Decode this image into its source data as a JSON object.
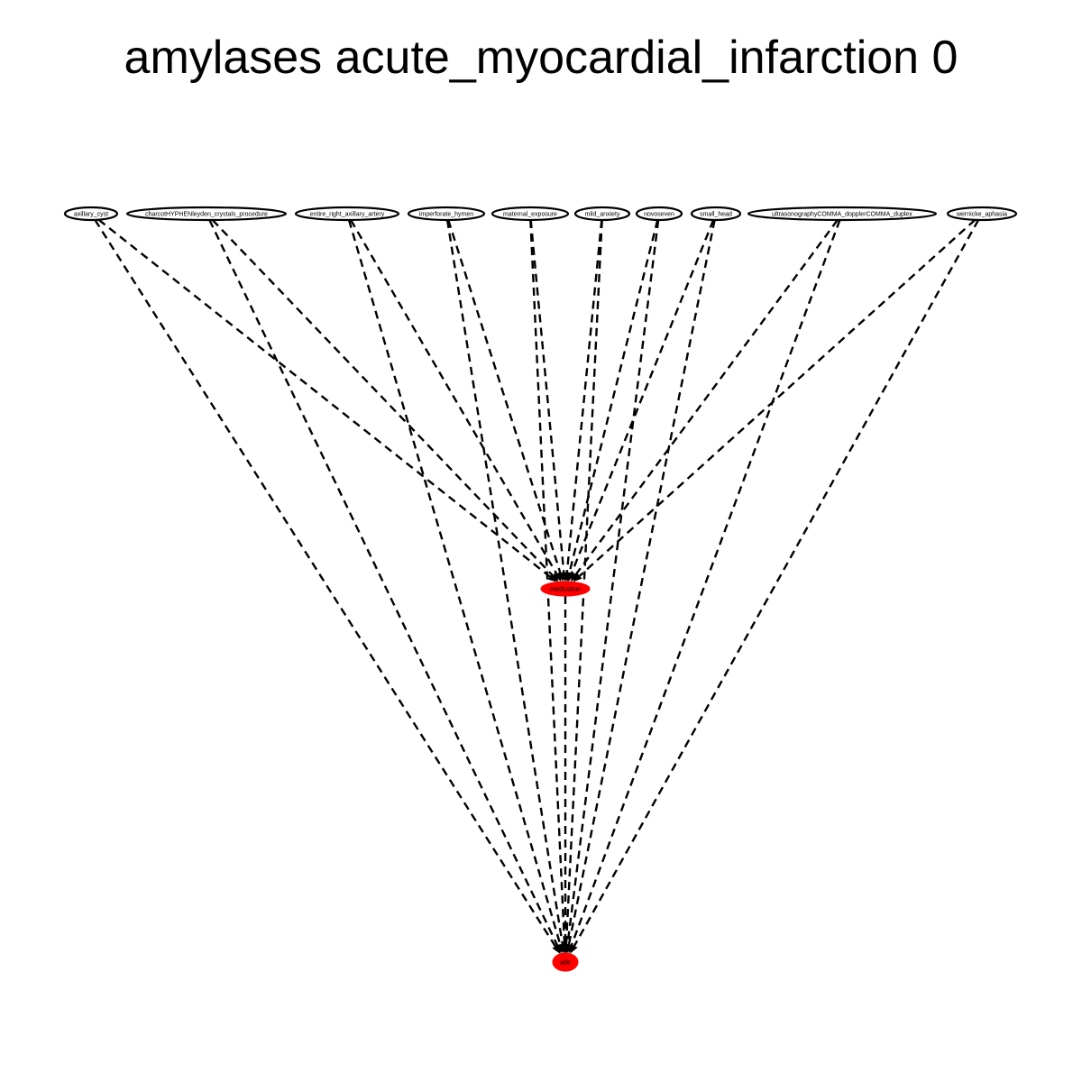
{
  "title": "amylases acute_myocardial_infarction 0",
  "colors": {
    "highlight_fill": "#ff0000",
    "node_stroke": "#000000",
    "edge": "#000000",
    "background": "#ffffff"
  },
  "nodes": {
    "n1": {
      "label": "axillary_cyst",
      "highlighted": false
    },
    "n2": {
      "label": "charcotHYPHENleyden_crystals_procedure",
      "highlighted": false
    },
    "n3": {
      "label": "entire_right_axillary_artery",
      "highlighted": false
    },
    "n4": {
      "label": "imperforate_hymen",
      "highlighted": false
    },
    "n5": {
      "label": "maternal_exposure",
      "highlighted": false
    },
    "n6": {
      "label": "mild_anxiety",
      "highlighted": false
    },
    "n7": {
      "label": "novoseven",
      "highlighted": false
    },
    "n8": {
      "label": "small_head",
      "highlighted": false
    },
    "n9": {
      "label": "ultrasonographyCOMMA_dopplerCOMMA_duplex",
      "highlighted": false
    },
    "n10": {
      "label": "wernicke_aphasia",
      "highlighted": false
    },
    "medication": {
      "label": "medication",
      "highlighted": true
    },
    "ade": {
      "label": "ade",
      "highlighted": true
    }
  },
  "edges": [
    {
      "from": "n1",
      "to": "medication",
      "style": "dashed"
    },
    {
      "from": "n1",
      "to": "ade",
      "style": "dashed"
    },
    {
      "from": "n2",
      "to": "medication",
      "style": "dashed"
    },
    {
      "from": "n2",
      "to": "ade",
      "style": "dashed"
    },
    {
      "from": "n3",
      "to": "medication",
      "style": "dashed"
    },
    {
      "from": "n3",
      "to": "ade",
      "style": "dashed"
    },
    {
      "from": "n4",
      "to": "medication",
      "style": "dashed"
    },
    {
      "from": "n4",
      "to": "ade",
      "style": "dashed"
    },
    {
      "from": "n5",
      "to": "medication",
      "style": "dashed"
    },
    {
      "from": "n5",
      "to": "ade",
      "style": "dashed"
    },
    {
      "from": "n6",
      "to": "medication",
      "style": "dashed"
    },
    {
      "from": "n6",
      "to": "ade",
      "style": "dashed"
    },
    {
      "from": "n7",
      "to": "medication",
      "style": "dashed"
    },
    {
      "from": "n7",
      "to": "ade",
      "style": "dashed"
    },
    {
      "from": "n8",
      "to": "medication",
      "style": "dashed"
    },
    {
      "from": "n8",
      "to": "ade",
      "style": "dashed"
    },
    {
      "from": "n9",
      "to": "medication",
      "style": "dashed"
    },
    {
      "from": "n9",
      "to": "ade",
      "style": "dashed"
    },
    {
      "from": "n10",
      "to": "medication",
      "style": "dashed"
    },
    {
      "from": "n10",
      "to": "ade",
      "style": "dashed"
    },
    {
      "from": "medication",
      "to": "ade",
      "style": "dashed"
    }
  ]
}
